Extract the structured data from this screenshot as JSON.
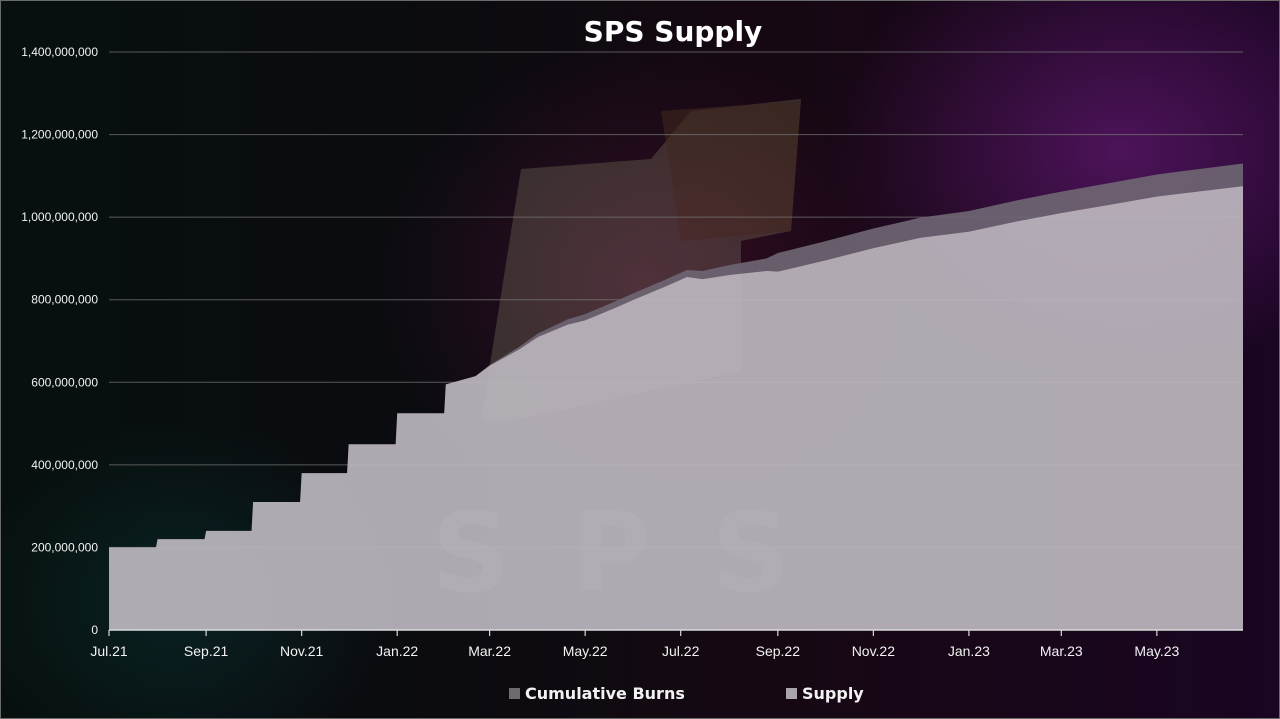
{
  "chart_data": {
    "type": "area",
    "title": "SPS Supply",
    "xlabel": "",
    "ylabel": "",
    "ylim": [
      0,
      1400000000
    ],
    "y_ticks": [
      "0",
      "200,000,000",
      "400,000,000",
      "600,000,000",
      "800,000,000",
      "1,000,000,000",
      "1,200,000,000",
      "1,400,000,000"
    ],
    "x_ticks": [
      "Jul.21",
      "Sep.21",
      "Nov.21",
      "Jan.22",
      "Mar.22",
      "May.22",
      "Jul.22",
      "Sep.22",
      "Nov.22",
      "Jan.23",
      "Mar.23",
      "May.23"
    ],
    "x_range": [
      "2021-07-01",
      "2023-06-25"
    ],
    "grid": true,
    "legend_position": "bottom",
    "stacked": true,
    "series": [
      {
        "name": "Cumulative Burns",
        "color": "#6e6572",
        "points": [
          [
            "2021-07-01",
            0
          ],
          [
            "2022-02-20",
            0
          ],
          [
            "2022-05-01",
            15000000
          ],
          [
            "2022-07-05",
            17000000
          ],
          [
            "2022-08-25",
            30000000
          ],
          [
            "2022-09-01",
            45000000
          ],
          [
            "2023-01-01",
            50000000
          ],
          [
            "2023-06-25",
            55000000
          ]
        ]
      },
      {
        "name": "Supply",
        "color": "#bdb7bf",
        "points": [
          [
            "2021-07-01",
            200000000
          ],
          [
            "2021-07-31",
            200000000
          ],
          [
            "2021-08-01",
            220000000
          ],
          [
            "2021-08-31",
            220000000
          ],
          [
            "2021-09-01",
            240000000
          ],
          [
            "2021-09-30",
            240000000
          ],
          [
            "2021-10-01",
            310000000
          ],
          [
            "2021-10-31",
            310000000
          ],
          [
            "2021-11-01",
            380000000
          ],
          [
            "2021-11-30",
            380000000
          ],
          [
            "2021-12-01",
            450000000
          ],
          [
            "2021-12-31",
            450000000
          ],
          [
            "2022-01-01",
            525000000
          ],
          [
            "2022-01-31",
            525000000
          ],
          [
            "2022-02-01",
            595000000
          ],
          [
            "2022-02-20",
            615000000
          ],
          [
            "2022-03-01",
            640000000
          ],
          [
            "2022-03-20",
            680000000
          ],
          [
            "2022-04-01",
            710000000
          ],
          [
            "2022-04-20",
            740000000
          ],
          [
            "2022-05-01",
            750000000
          ],
          [
            "2022-05-20",
            780000000
          ],
          [
            "2022-06-01",
            800000000
          ],
          [
            "2022-06-20",
            830000000
          ],
          [
            "2022-07-05",
            855000000
          ],
          [
            "2022-07-15",
            850000000
          ],
          [
            "2022-08-01",
            860000000
          ],
          [
            "2022-08-25",
            870000000
          ],
          [
            "2022-09-01",
            868000000
          ],
          [
            "2022-10-01",
            895000000
          ],
          [
            "2022-11-01",
            925000000
          ],
          [
            "2022-12-01",
            950000000
          ],
          [
            "2023-01-01",
            965000000
          ],
          [
            "2023-02-01",
            990000000
          ],
          [
            "2023-03-01",
            1010000000
          ],
          [
            "2023-04-01",
            1030000000
          ],
          [
            "2023-05-01",
            1050000000
          ],
          [
            "2023-06-25",
            1075000000
          ]
        ]
      }
    ]
  }
}
